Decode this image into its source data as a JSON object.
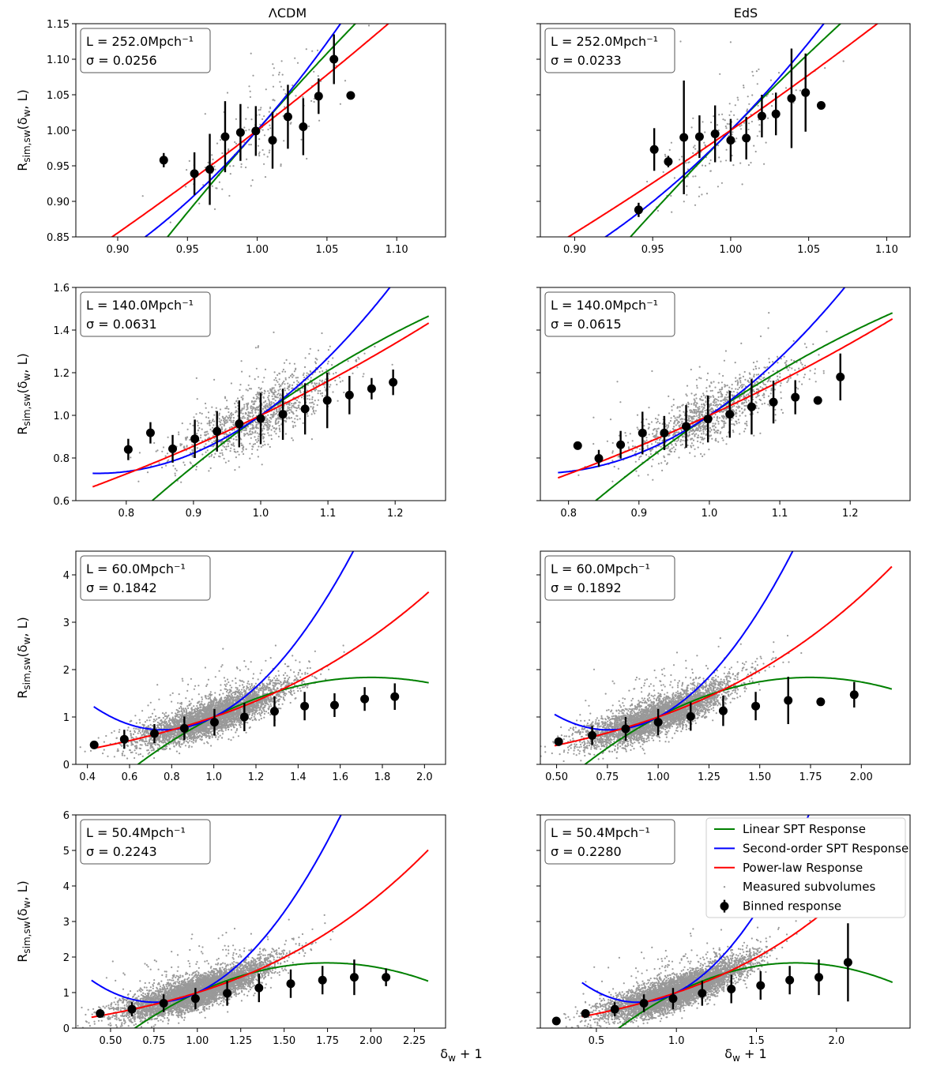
{
  "figure": {
    "column_titles": [
      "ΛCDM",
      "EdS"
    ],
    "ylabel": "R_{sim,sw}(δ_w, L)",
    "xlabel": "δ_w + 1"
  },
  "legend": {
    "entries": [
      {
        "label": "Linear SPT Response",
        "kind": "line",
        "color": "#008000"
      },
      {
        "label": "Second-order SPT Response",
        "kind": "line",
        "color": "#0000ff"
      },
      {
        "label": "Power-law Response",
        "kind": "line",
        "color": "#ff0000"
      },
      {
        "label": "Measured subvolumes",
        "kind": "dot",
        "color": "#999999"
      },
      {
        "label": "Binned response",
        "kind": "errorbar",
        "color": "#000000"
      }
    ]
  },
  "colors": {
    "linear": "#008000",
    "second": "#0000ff",
    "power": "#ff0000",
    "scatter": "#999999",
    "binned": "#000000"
  },
  "chart_data": [
    {
      "type": "scatter",
      "panel": "LCDM-252",
      "column": "ΛCDM",
      "L_label": "L = 252.0Mpch⁻¹",
      "sigma_label": "σ = 0.0256",
      "sigma": 0.0256,
      "xlim": [
        0.87,
        1.135
      ],
      "ylim": [
        0.85,
        1.15
      ],
      "xticks": [
        "0.90",
        "0.95",
        "1.00",
        "1.05",
        "1.10"
      ],
      "yticks": [
        "0.85",
        "0.90",
        "0.95",
        "1.00",
        "1.05",
        "1.10",
        "1.15"
      ],
      "curve_xrange": [
        0.88,
        1.127
      ],
      "n_scatter": 160,
      "binned": [
        [
          0.933,
          0.958,
          0.01
        ],
        [
          0.955,
          0.939,
          0.03
        ],
        [
          0.966,
          0.945,
          0.05
        ],
        [
          0.977,
          0.991,
          0.05
        ],
        [
          0.988,
          0.997,
          0.04
        ],
        [
          0.999,
          0.999,
          0.035
        ],
        [
          1.011,
          0.986,
          0.04
        ],
        [
          1.022,
          1.019,
          0.045
        ],
        [
          1.033,
          1.005,
          0.04
        ],
        [
          1.044,
          1.048,
          0.025
        ],
        [
          1.055,
          1.1,
          0.035
        ],
        [
          1.067,
          1.049,
          0.004
        ]
      ]
    },
    {
      "type": "scatter",
      "panel": "EdS-252",
      "column": "EdS",
      "L_label": "L = 252.0Mpch⁻¹",
      "sigma_label": "σ = 0.0233",
      "sigma": 0.0233,
      "xlim": [
        0.878,
        1.115
      ],
      "ylim": [
        0.85,
        1.15
      ],
      "xticks": [
        "0.90",
        "0.95",
        "1.00",
        "1.05",
        "1.10"
      ],
      "yticks": [
        "0.85",
        "0.90",
        "0.95",
        "1.00",
        "1.05",
        "1.10",
        "1.15"
      ],
      "curve_xrange": [
        0.89,
        1.108
      ],
      "n_scatter": 160,
      "binned": [
        [
          0.941,
          0.888,
          0.01
        ],
        [
          0.951,
          0.973,
          0.03
        ],
        [
          0.96,
          0.956,
          0.008
        ],
        [
          0.97,
          0.99,
          0.08
        ],
        [
          0.98,
          0.991,
          0.03
        ],
        [
          0.99,
          0.995,
          0.04
        ],
        [
          1.0,
          0.986,
          0.03
        ],
        [
          1.01,
          0.989,
          0.03
        ],
        [
          1.02,
          1.02,
          0.03
        ],
        [
          1.029,
          1.023,
          0.03
        ],
        [
          1.039,
          1.045,
          0.07
        ],
        [
          1.048,
          1.053,
          0.055
        ],
        [
          1.058,
          1.035,
          0.005
        ]
      ]
    },
    {
      "type": "scatter",
      "panel": "LCDM-140",
      "column": "ΛCDM",
      "L_label": "L = 140.0Mpch⁻¹",
      "sigma_label": "σ = 0.0631",
      "sigma": 0.0631,
      "xlim": [
        0.725,
        1.275
      ],
      "ylim": [
        0.6,
        1.6
      ],
      "xticks": [
        "0.8",
        "0.9",
        "1.0",
        "1.1",
        "1.2"
      ],
      "yticks": [
        "0.6",
        "0.8",
        "1.0",
        "1.2",
        "1.4",
        "1.6"
      ],
      "curve_xrange": [
        0.75,
        1.25
      ],
      "n_scatter": 1200,
      "binned": [
        [
          0.803,
          0.84,
          0.05
        ],
        [
          0.836,
          0.918,
          0.05
        ],
        [
          0.869,
          0.843,
          0.065
        ],
        [
          0.902,
          0.89,
          0.09
        ],
        [
          0.935,
          0.925,
          0.095
        ],
        [
          0.968,
          0.96,
          0.11
        ],
        [
          1.0,
          0.985,
          0.12
        ],
        [
          1.033,
          1.005,
          0.12
        ],
        [
          1.066,
          1.03,
          0.12
        ],
        [
          1.099,
          1.07,
          0.13
        ],
        [
          1.132,
          1.095,
          0.09
        ],
        [
          1.165,
          1.125,
          0.05
        ],
        [
          1.197,
          1.155,
          0.06
        ]
      ]
    },
    {
      "type": "scatter",
      "panel": "EdS-140",
      "column": "EdS",
      "L_label": "L = 140.0Mpch⁻¹",
      "sigma_label": "σ = 0.0615",
      "sigma": 0.0615,
      "xlim": [
        0.76,
        1.285
      ],
      "ylim": [
        0.6,
        1.6
      ],
      "xticks": [
        "0.8",
        "0.9",
        "1.0",
        "1.1",
        "1.2"
      ],
      "yticks": [
        "0.6",
        "0.8",
        "1.0",
        "1.2",
        "1.4",
        "1.6"
      ],
      "curve_xrange": [
        0.785,
        1.26
      ],
      "n_scatter": 1200,
      "binned": [
        [
          0.813,
          0.858,
          0.01
        ],
        [
          0.843,
          0.798,
          0.04
        ],
        [
          0.874,
          0.862,
          0.065
        ],
        [
          0.905,
          0.917,
          0.1
        ],
        [
          0.936,
          0.917,
          0.08
        ],
        [
          0.967,
          0.948,
          0.1
        ],
        [
          0.998,
          0.983,
          0.11
        ],
        [
          1.029,
          1.005,
          0.11
        ],
        [
          1.06,
          1.04,
          0.13
        ],
        [
          1.091,
          1.062,
          0.1
        ],
        [
          1.122,
          1.085,
          0.08
        ],
        [
          1.154,
          1.07,
          0.005
        ],
        [
          1.186,
          1.18,
          0.11
        ]
      ]
    },
    {
      "type": "scatter",
      "panel": "LCDM-60",
      "column": "ΛCDM",
      "L_label": "L = 60.0Mpch⁻¹",
      "sigma_label": "σ = 0.1842",
      "sigma": 0.1842,
      "xlim": [
        0.345,
        2.1
      ],
      "ylim": [
        0.0,
        4.5
      ],
      "xticks": [
        "0.4",
        "0.6",
        "0.8",
        "1.0",
        "1.2",
        "1.4",
        "1.6",
        "1.8",
        "2.0"
      ],
      "yticks": [
        "0",
        "1",
        "2",
        "3",
        "4"
      ],
      "curve_xrange": [
        0.43,
        2.02
      ],
      "n_scatter": 4500,
      "binned": [
        [
          0.432,
          0.41,
          0.02
        ],
        [
          0.575,
          0.53,
          0.2
        ],
        [
          0.718,
          0.65,
          0.2
        ],
        [
          0.86,
          0.76,
          0.25
        ],
        [
          1.003,
          0.89,
          0.28
        ],
        [
          1.145,
          1.0,
          0.3
        ],
        [
          1.288,
          1.12,
          0.32
        ],
        [
          1.431,
          1.23,
          0.3
        ],
        [
          1.573,
          1.25,
          0.25
        ],
        [
          1.716,
          1.38,
          0.25
        ],
        [
          1.859,
          1.43,
          0.28
        ]
      ]
    },
    {
      "type": "scatter",
      "panel": "EdS-60",
      "column": "EdS",
      "L_label": "L = 60.0Mpch⁻¹",
      "sigma_label": "σ = 0.1892",
      "sigma": 0.1892,
      "xlim": [
        0.42,
        2.24
      ],
      "ylim": [
        0.0,
        4.5
      ],
      "xticks": [
        "0.50",
        "0.75",
        "1.00",
        "1.25",
        "1.50",
        "1.75",
        "2.00"
      ],
      "yticks": [
        "0",
        "1",
        "2",
        "3",
        "4"
      ],
      "curve_xrange": [
        0.49,
        2.15
      ],
      "n_scatter": 4500,
      "binned": [
        [
          0.51,
          0.48,
          0.09
        ],
        [
          0.675,
          0.61,
          0.2
        ],
        [
          0.84,
          0.75,
          0.25
        ],
        [
          1.0,
          0.89,
          0.28
        ],
        [
          1.16,
          1.01,
          0.3
        ],
        [
          1.32,
          1.13,
          0.32
        ],
        [
          1.48,
          1.23,
          0.3
        ],
        [
          1.64,
          1.35,
          0.5
        ],
        [
          1.8,
          1.32,
          0.02
        ],
        [
          1.965,
          1.47,
          0.27
        ]
      ]
    },
    {
      "type": "scatter",
      "panel": "LCDM-50",
      "column": "ΛCDM",
      "L_label": "L = 50.4Mpch⁻¹",
      "sigma_label": "σ = 0.2243",
      "sigma": 0.2243,
      "xlim": [
        0.3,
        2.43
      ],
      "ylim": [
        0.0,
        6.0
      ],
      "xticks": [
        "0.50",
        "0.75",
        "1.00",
        "1.25",
        "1.50",
        "1.75",
        "2.00",
        "2.25"
      ],
      "yticks": [
        "0",
        "1",
        "2",
        "3",
        "4",
        "5",
        "6"
      ],
      "curve_xrange": [
        0.39,
        2.33
      ],
      "n_scatter": 6000,
      "binned": [
        [
          0.44,
          0.41,
          0.1
        ],
        [
          0.623,
          0.53,
          0.2
        ],
        [
          0.806,
          0.7,
          0.25
        ],
        [
          0.989,
          0.83,
          0.3
        ],
        [
          1.172,
          0.98,
          0.35
        ],
        [
          1.355,
          1.13,
          0.4
        ],
        [
          1.538,
          1.25,
          0.4
        ],
        [
          1.721,
          1.35,
          0.4
        ],
        [
          1.904,
          1.43,
          0.5
        ],
        [
          2.087,
          1.43,
          0.25
        ]
      ]
    },
    {
      "type": "scatter",
      "panel": "EdS-50",
      "column": "EdS",
      "L_label": "L = 50.4Mpch⁻¹",
      "sigma_label": "σ = 0.2280",
      "sigma": 0.228,
      "xlim": [
        0.15,
        2.46
      ],
      "ylim": [
        0.0,
        6.0
      ],
      "xticks": [
        "0.5",
        "1.0",
        "1.5",
        "2.0"
      ],
      "yticks": [
        "0",
        "1",
        "2",
        "3",
        "4",
        "5",
        "6"
      ],
      "curve_xrange": [
        0.41,
        2.35
      ],
      "n_scatter": 6000,
      "binned": [
        [
          0.25,
          0.2,
          0.02
        ],
        [
          0.432,
          0.41,
          0.05
        ],
        [
          0.615,
          0.53,
          0.2
        ],
        [
          0.797,
          0.7,
          0.25
        ],
        [
          0.979,
          0.83,
          0.3
        ],
        [
          1.161,
          0.98,
          0.35
        ],
        [
          1.343,
          1.1,
          0.4
        ],
        [
          1.526,
          1.2,
          0.4
        ],
        [
          1.708,
          1.35,
          0.4
        ],
        [
          1.89,
          1.43,
          0.5
        ],
        [
          2.072,
          1.85,
          1.1
        ]
      ]
    }
  ]
}
